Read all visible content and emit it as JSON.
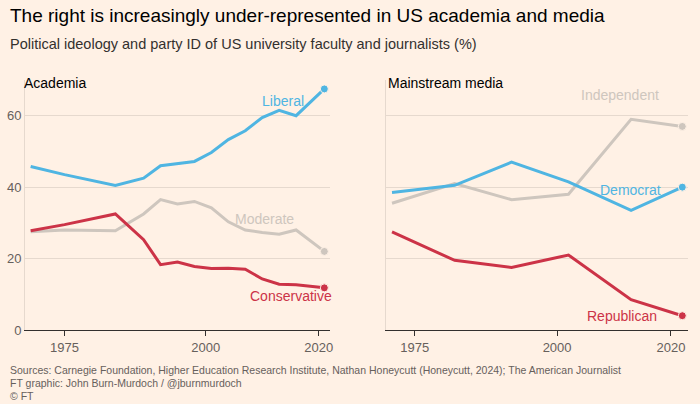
{
  "title": "The right is increasingly under-represented in US academia and media",
  "subtitle": "Political ideology and party ID of US university faculty and journalists (%)",
  "source": "Sources: Carnegie Foundation, Higher Education Research Institute, Nathan Honeycutt (Honeycutt, 2024); The American Journalist",
  "credit": "FT graphic: John Burn-Murdoch / @jburnmurdoch",
  "copyright": "© FT",
  "chart_data": [
    {
      "type": "line",
      "title": "Academia",
      "x": [
        1969,
        1975,
        1984,
        1989,
        1992,
        1995,
        1998,
        2001,
        2004,
        2007,
        2010,
        2013,
        2016,
        2021
      ],
      "series": [
        {
          "name": "Liberal",
          "color": "#4FB5E2",
          "marker": "circle",
          "values": [
            45.8,
            43.5,
            40.5,
            42.5,
            46,
            46.5,
            47.2,
            49.7,
            53.3,
            55.8,
            59.5,
            61.5,
            60,
            67.5
          ]
        },
        {
          "name": "Moderate",
          "color": "#CEC6BE",
          "marker": "circle",
          "values": [
            27.5,
            28,
            27.8,
            32.5,
            36.5,
            35.3,
            36,
            34.2,
            30.3,
            28,
            27.3,
            26.8,
            28,
            22
          ]
        },
        {
          "name": "Conservative",
          "color": "#CC3347",
          "marker": "circle",
          "values": [
            27.8,
            29.5,
            32.5,
            25.3,
            18.3,
            19,
            17.8,
            17.2,
            17.3,
            17,
            14.3,
            12.8,
            12.7,
            11.8
          ]
        }
      ],
      "xlim": [
        1968,
        2022
      ],
      "xticks": [
        1975,
        2000,
        2020
      ],
      "ylim": [
        0,
        70
      ],
      "yticks": [
        0,
        20,
        40,
        60
      ],
      "grid": true
    },
    {
      "type": "line",
      "title": "Mainstream media",
      "x": [
        1971,
        1982,
        1992,
        2002,
        2013,
        2022
      ],
      "series": [
        {
          "name": "Independent",
          "color": "#CEC6BE",
          "marker": "circle",
          "values": [
            35.5,
            41,
            36.5,
            38,
            59,
            57
          ]
        },
        {
          "name": "Democrat",
          "color": "#4FB5E2",
          "marker": "circle",
          "values": [
            38.5,
            40.5,
            47,
            41.5,
            33.5,
            40
          ]
        },
        {
          "name": "Republican",
          "color": "#CC3347",
          "marker": "circle",
          "values": [
            27.5,
            19.5,
            17.5,
            21,
            8.5,
            4
          ]
        }
      ],
      "xlim": [
        1970,
        2023
      ],
      "xticks": [
        1975,
        2000,
        2020
      ],
      "ylim": [
        0,
        70
      ],
      "yticks": [
        0,
        20,
        40,
        60
      ],
      "grid": true,
      "tick_labels": "x"
    }
  ]
}
